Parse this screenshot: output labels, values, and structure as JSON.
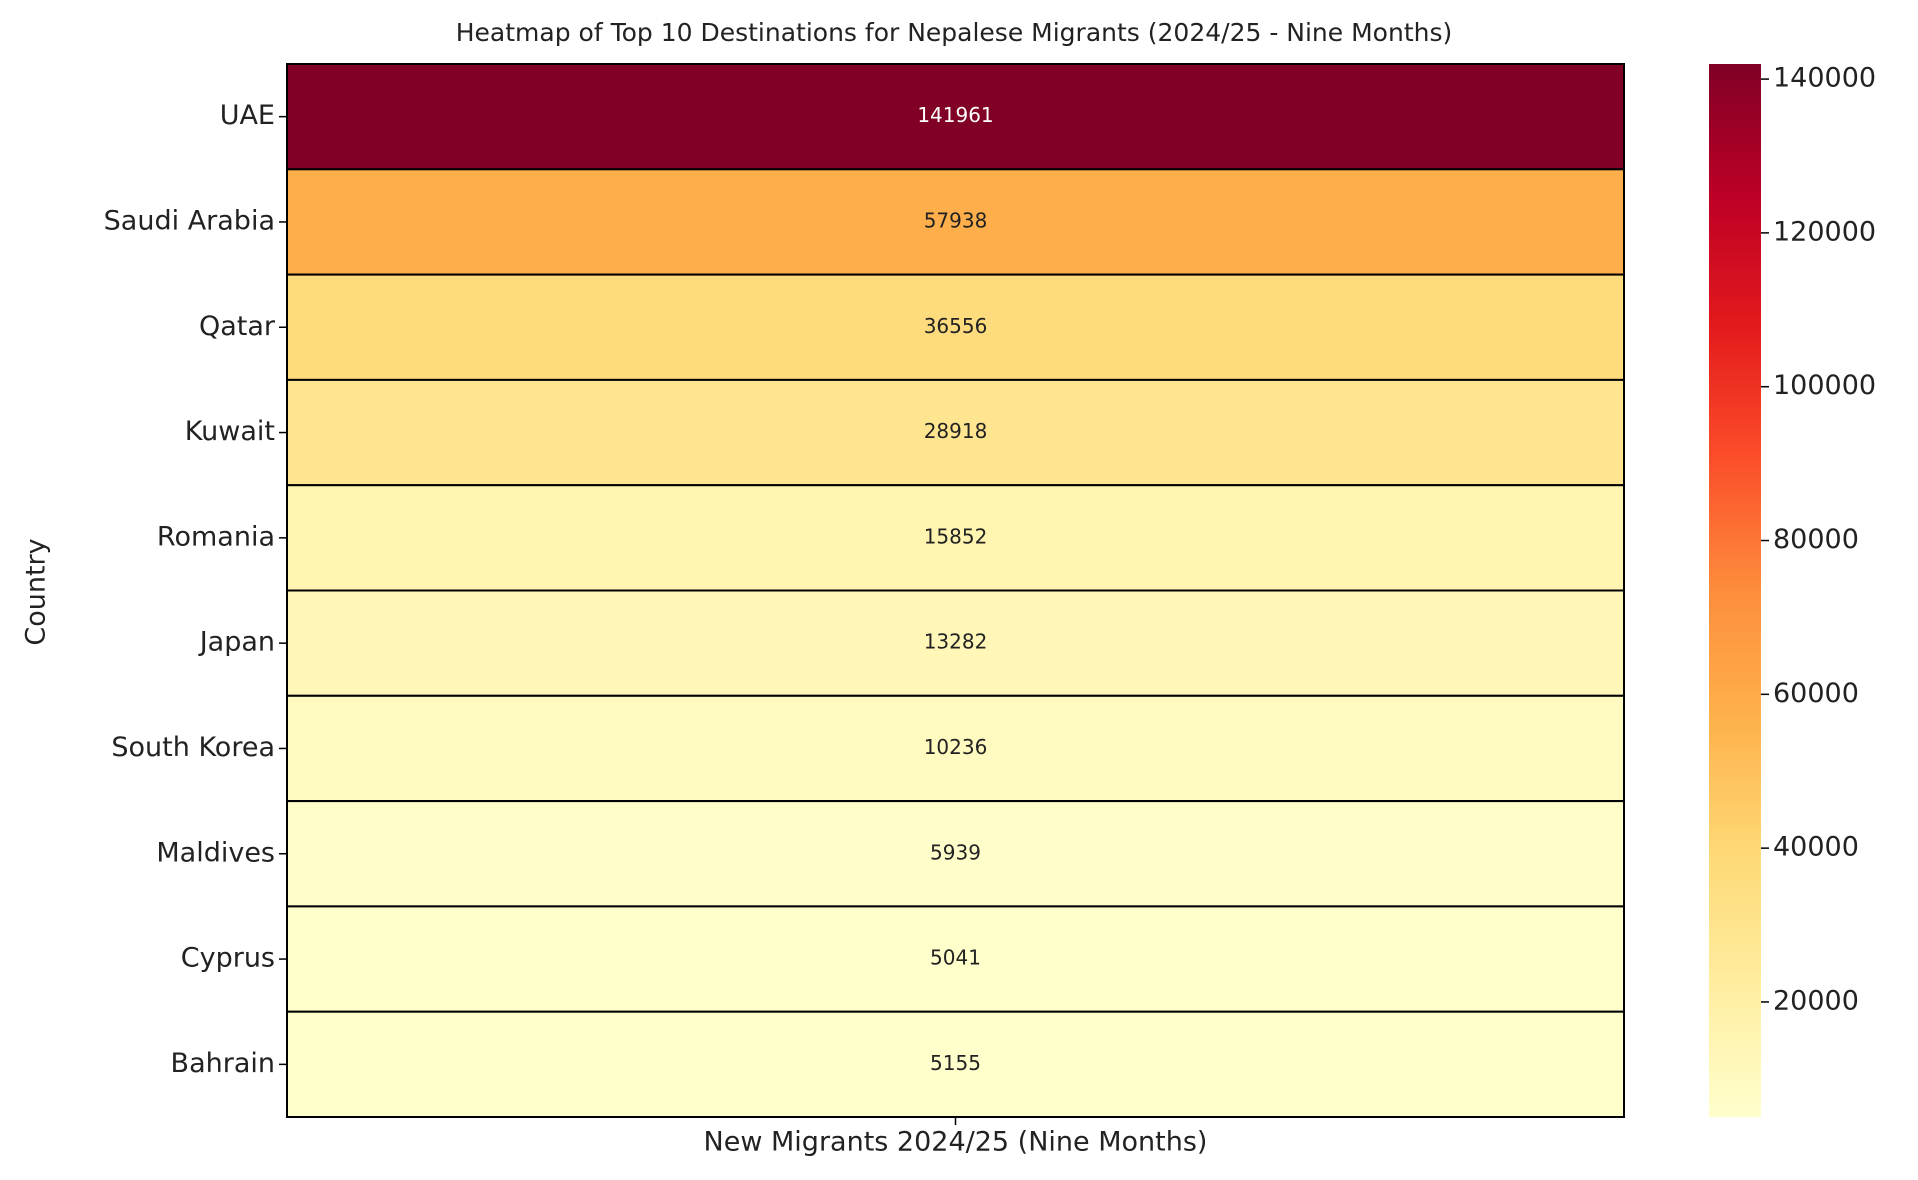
{
  "chart_data": {
    "type": "heatmap",
    "title": "Heatmap of Top 10 Destinations for Nepalese Migrants (2024/25 - Nine Months)",
    "ylabel": "Country",
    "columns": [
      "New Migrants 2024/25 (Nine Months)"
    ],
    "categories": [
      "UAE",
      "Saudi Arabia",
      "Qatar",
      "Kuwait",
      "Romania",
      "Japan",
      "South Korea",
      "Maldives",
      "Cyprus",
      "Bahrain"
    ],
    "values": [
      141961,
      57938,
      36556,
      28918,
      15852,
      13282,
      10236,
      5939,
      5041,
      5155
    ],
    "clim": [
      5041,
      141961
    ],
    "cticks": [
      20000,
      40000,
      60000,
      80000,
      100000,
      120000,
      140000
    ],
    "colormap": [
      "#ffffcc",
      "#ffeda0",
      "#fed976",
      "#feb24c",
      "#fd8d3c",
      "#fc4e2a",
      "#e31a1c",
      "#bd0026",
      "#800026"
    ]
  }
}
